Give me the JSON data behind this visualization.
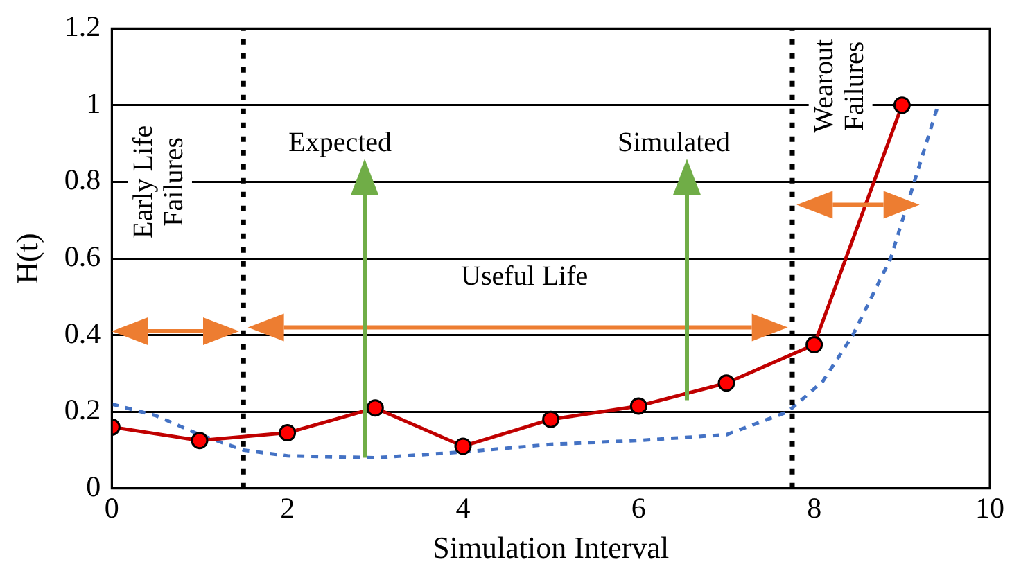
{
  "chart_data": {
    "type": "line",
    "xlabel": "Simulation Interval",
    "ylabel": "H(t)",
    "xlim": [
      0,
      10
    ],
    "xticks": [
      0,
      2,
      4,
      6,
      8,
      10
    ],
    "ylim": [
      0,
      1.2
    ],
    "yticks": [
      0,
      0.2,
      0.4,
      0.6,
      0.8,
      1,
      1.2
    ],
    "grid": "y",
    "legend": false,
    "series": [
      {
        "color": "#c00000",
        "marker": "circle",
        "line_style": "solid",
        "x": [
          0,
          1,
          2,
          3,
          4,
          5,
          6,
          7,
          8,
          9
        ],
        "values": [
          0.16,
          0.125,
          0.145,
          0.21,
          0.11,
          0.18,
          0.215,
          0.275,
          0.375,
          1.0
        ]
      },
      {
        "color": "#4472c4",
        "marker": "none",
        "line_style": "dashed",
        "x": [
          0,
          0.5,
          1,
          1.5,
          2,
          3,
          4,
          5,
          6,
          7,
          7.7,
          8.1,
          8.44,
          8.87,
          9.14,
          9.41
        ],
        "values": [
          0.22,
          0.19,
          0.14,
          0.1,
          0.085,
          0.08,
          0.095,
          0.115,
          0.125,
          0.14,
          0.2,
          0.28,
          0.4,
          0.6,
          0.8,
          1.0
        ]
      }
    ],
    "ref_lines": [
      {
        "axis": "x",
        "value": 1.5,
        "color": "#000000",
        "line_style": "dotted"
      },
      {
        "axis": "x",
        "value": 7.75,
        "color": "#000000",
        "line_style": "dotted"
      }
    ],
    "annotations": [
      "Early Life\nFailures",
      "Expected",
      "Useful Life",
      "Simulated",
      "Wearout\nFailures"
    ]
  }
}
